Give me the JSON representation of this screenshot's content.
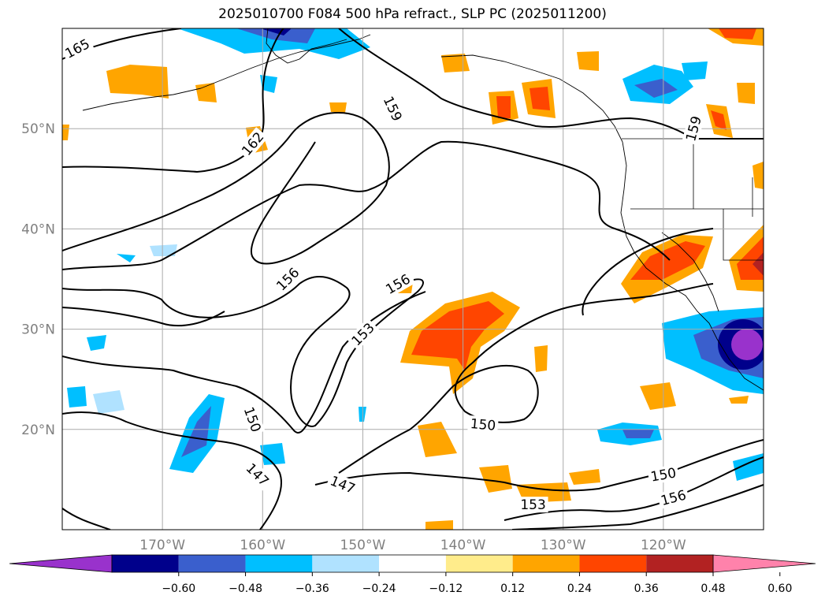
{
  "title": "2025010700 F084 500 hPa refract., SLP PC (2025011200)",
  "map": {
    "lon_range": [
      -180,
      -110
    ],
    "lat_range": [
      10,
      60
    ],
    "lon_ticks": [
      {
        "value": -170,
        "label": "170°W"
      },
      {
        "value": -160,
        "label": "160°W"
      },
      {
        "value": -150,
        "label": "150°W"
      },
      {
        "value": -140,
        "label": "140°W"
      },
      {
        "value": -130,
        "label": "130°W"
      },
      {
        "value": -120,
        "label": "120°W"
      }
    ],
    "lat_ticks": [
      {
        "value": 50,
        "label": "50°N"
      },
      {
        "value": 40,
        "label": "40°N"
      },
      {
        "value": 30,
        "label": "30°N"
      },
      {
        "value": 20,
        "label": "20°N"
      }
    ],
    "grid": true,
    "tick_label_color": "#808080"
  },
  "contour_labels": [
    {
      "text": "165",
      "lon": -178.5,
      "lat": 58.0,
      "angle": -28
    },
    {
      "text": "159",
      "lon": -147.0,
      "lat": 52.0,
      "angle": 65
    },
    {
      "text": "162",
      "lon": -161.0,
      "lat": 48.5,
      "angle": -50
    },
    {
      "text": "159",
      "lon": -117.0,
      "lat": 50.0,
      "angle": -75
    },
    {
      "text": "156",
      "lon": -157.5,
      "lat": 35.0,
      "angle": -45
    },
    {
      "text": "156",
      "lon": -146.5,
      "lat": 34.5,
      "angle": -30
    },
    {
      "text": "153",
      "lon": -150.0,
      "lat": 29.5,
      "angle": -45
    },
    {
      "text": "150",
      "lon": -161.0,
      "lat": 21.0,
      "angle": 70
    },
    {
      "text": "147",
      "lon": -160.5,
      "lat": 15.5,
      "angle": 45
    },
    {
      "text": "147",
      "lon": -152.0,
      "lat": 14.5,
      "angle": 22
    },
    {
      "text": "150",
      "lon": -138.0,
      "lat": 20.5,
      "angle": 5
    },
    {
      "text": "153",
      "lon": -133.0,
      "lat": 12.5,
      "angle": 0
    },
    {
      "text": "150",
      "lon": -120.0,
      "lat": 15.5,
      "angle": -10
    },
    {
      "text": "156",
      "lon": -119.0,
      "lat": 13.2,
      "angle": -15
    }
  ],
  "colorbar": {
    "colors": [
      "#9932cc",
      "#00008b",
      "#3a5fcd",
      "#00bfff",
      "#b0e2ff",
      "#ffffff",
      "#ffec8b",
      "#ffa500",
      "#ff4500",
      "#b22222",
      "#ff82ab"
    ],
    "tick_labels": [
      "-0.60",
      "-0.48",
      "-0.36",
      "-0.24",
      "-0.12",
      "0.12",
      "0.24",
      "0.36",
      "0.48",
      "0.60"
    ]
  }
}
